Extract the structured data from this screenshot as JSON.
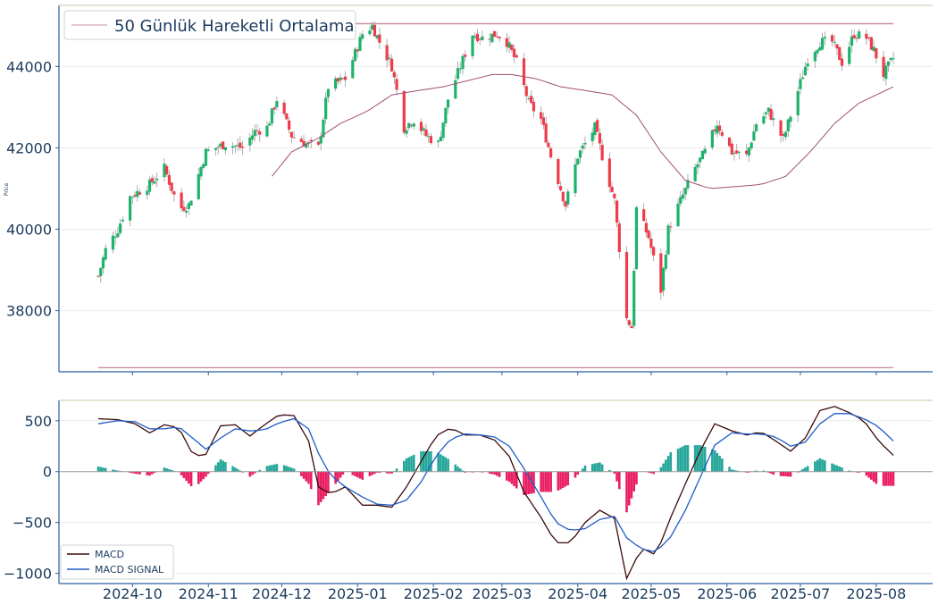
{
  "chart_data": [
    {
      "type": "candlestick",
      "ylabel": "Price",
      "ylim": [
        36500,
        45500
      ],
      "yticks": [
        "38000",
        "40000",
        "42000",
        "44000"
      ],
      "x_labels": [
        "2024-10",
        "2024-11",
        "2024-12",
        "2025-01",
        "2025-02",
        "2025-03",
        "2025-04",
        "2025-05",
        "2025-06",
        "2025-07",
        "2025-08"
      ],
      "x_start": "2024-09-17",
      "x_end": "2025-08-08",
      "legend": {
        "label": "50 Günlük Hareketli Ortalama",
        "position": "top-left"
      },
      "grid": true,
      "reference_lines": [
        45050,
        36600
      ],
      "colors": {
        "up": "#1db36a",
        "down": "#ef3b4a",
        "ma": "#a0506e",
        "ref": "#c88fa3",
        "axis": "#2a5ea0"
      },
      "close_anchors": [
        [
          "2024-09-17",
          38850
        ],
        [
          "2024-09-20",
          39500
        ],
        [
          "2024-09-25",
          40000
        ],
        [
          "2024-09-30",
          40800
        ],
        [
          "2024-10-08",
          41100
        ],
        [
          "2024-10-14",
          41500
        ],
        [
          "2024-10-20",
          40500
        ],
        [
          "2024-10-24",
          40600
        ],
        [
          "2024-10-31",
          41900
        ],
        [
          "2024-11-08",
          42100
        ],
        [
          "2024-11-15",
          42000
        ],
        [
          "2024-11-20",
          42400
        ],
        [
          "2024-11-25",
          42500
        ],
        [
          "2024-11-29",
          43200
        ],
        [
          "2024-12-05",
          42300
        ],
        [
          "2024-12-11",
          42100
        ],
        [
          "2024-12-16",
          42000
        ],
        [
          "2024-12-20",
          43500
        ],
        [
          "2024-12-27",
          43700
        ],
        [
          "2025-01-03",
          44800
        ],
        [
          "2025-01-07",
          45000
        ],
        [
          "2025-01-10",
          44600
        ],
        [
          "2025-01-15",
          44000
        ],
        [
          "2025-01-20",
          42500
        ],
        [
          "2025-01-24",
          42700
        ],
        [
          "2025-01-29",
          42300
        ],
        [
          "2025-02-03",
          42100
        ],
        [
          "2025-02-07",
          43200
        ],
        [
          "2025-02-12",
          44000
        ],
        [
          "2025-02-17",
          44800
        ],
        [
          "2025-02-21",
          44700
        ],
        [
          "2025-02-27",
          44800
        ],
        [
          "2025-03-03",
          44600
        ],
        [
          "2025-03-07",
          44100
        ],
        [
          "2025-03-12",
          43100
        ],
        [
          "2025-03-17",
          42700
        ],
        [
          "2025-03-21",
          41800
        ],
        [
          "2025-03-27",
          40600
        ],
        [
          "2025-04-01",
          41800
        ],
        [
          "2025-04-04",
          42100
        ],
        [
          "2025-04-08",
          42500
        ],
        [
          "2025-04-11",
          41800
        ],
        [
          "2025-04-16",
          40700
        ],
        [
          "2025-04-21",
          37800
        ],
        [
          "2025-04-23",
          37600
        ],
        [
          "2025-04-25",
          40500
        ],
        [
          "2025-04-30",
          39800
        ],
        [
          "2025-05-05",
          38500
        ],
        [
          "2025-05-08",
          40000
        ],
        [
          "2025-05-13",
          40700
        ],
        [
          "2025-05-19",
          41500
        ],
        [
          "2025-05-23",
          41900
        ],
        [
          "2025-05-28",
          42600
        ],
        [
          "2025-06-03",
          41900
        ],
        [
          "2025-06-09",
          41800
        ],
        [
          "2025-06-13",
          42600
        ],
        [
          "2025-06-18",
          42900
        ],
        [
          "2025-06-24",
          42200
        ],
        [
          "2025-06-30",
          43400
        ],
        [
          "2025-07-04",
          44200
        ],
        [
          "2025-07-09",
          44600
        ],
        [
          "2025-07-14",
          44600
        ],
        [
          "2025-07-18",
          44100
        ],
        [
          "2025-07-23",
          44800
        ],
        [
          "2025-07-28",
          44700
        ],
        [
          "2025-07-31",
          44400
        ],
        [
          "2025-08-04",
          43800
        ],
        [
          "2025-08-08",
          44200
        ]
      ],
      "ma_anchors": [
        [
          "2024-11-27",
          41300
        ],
        [
          "2024-12-05",
          41900
        ],
        [
          "2024-12-15",
          42200
        ],
        [
          "2024-12-25",
          42600
        ],
        [
          "2025-01-05",
          42900
        ],
        [
          "2025-01-15",
          43300
        ],
        [
          "2025-01-25",
          43400
        ],
        [
          "2025-02-05",
          43500
        ],
        [
          "2025-02-15",
          43650
        ],
        [
          "2025-02-25",
          43800
        ],
        [
          "2025-03-05",
          43800
        ],
        [
          "2025-03-15",
          43700
        ],
        [
          "2025-03-25",
          43500
        ],
        [
          "2025-04-05",
          43400
        ],
        [
          "2025-04-15",
          43300
        ],
        [
          "2025-04-25",
          42800
        ],
        [
          "2025-05-05",
          41900
        ],
        [
          "2025-05-15",
          41200
        ],
        [
          "2025-05-25",
          41000
        ],
        [
          "2025-06-05",
          41050
        ],
        [
          "2025-06-15",
          41100
        ],
        [
          "2025-06-25",
          41300
        ],
        [
          "2025-07-05",
          41900
        ],
        [
          "2025-07-15",
          42600
        ],
        [
          "2025-07-25",
          43100
        ],
        [
          "2025-08-08",
          43500
        ]
      ]
    },
    {
      "type": "line+bar",
      "ylim": [
        -1100,
        700
      ],
      "yticks": [
        "500",
        "0",
        "−500",
        "−1000"
      ],
      "x_labels": [
        "2024-10",
        "2024-11",
        "2024-12",
        "2025-01",
        "2025-02",
        "2025-03",
        "2025-04",
        "2025-05",
        "2025-06",
        "2025-07",
        "2025-08"
      ],
      "legend": {
        "position": "bottom-left"
      },
      "grid": true,
      "series": [
        {
          "name": "MACD",
          "color": "#3a0a0a",
          "points": [
            [
              "2024-09-17",
              520
            ],
            [
              "2024-09-25",
              510
            ],
            [
              "2024-10-02",
              470
            ],
            [
              "2024-10-08",
              380
            ],
            [
              "2024-10-14",
              460
            ],
            [
              "2024-10-20",
              430
            ],
            [
              "2024-10-26",
              150
            ],
            [
              "2024-10-31",
              170
            ],
            [
              "2024-11-06",
              450
            ],
            [
              "2024-11-12",
              460
            ],
            [
              "2024-11-18",
              350
            ],
            [
              "2024-11-24",
              460
            ],
            [
              "2024-11-30",
              560
            ],
            [
              "2024-12-06",
              550
            ],
            [
              "2024-12-12",
              300
            ],
            [
              "2024-12-16",
              -150
            ],
            [
              "2024-12-21",
              -220
            ],
            [
              "2024-12-27",
              -150
            ],
            [
              "2025-01-03",
              -330
            ],
            [
              "2025-01-09",
              -330
            ],
            [
              "2025-01-15",
              -350
            ],
            [
              "2025-01-21",
              -150
            ],
            [
              "2025-01-27",
              100
            ],
            [
              "2025-02-02",
              350
            ],
            [
              "2025-02-08",
              430
            ],
            [
              "2025-02-14",
              360
            ],
            [
              "2025-02-20",
              360
            ],
            [
              "2025-02-26",
              310
            ],
            [
              "2025-03-04",
              150
            ],
            [
              "2025-03-10",
              -200
            ],
            [
              "2025-03-17",
              -450
            ],
            [
              "2025-03-23",
              -700
            ],
            [
              "2025-03-29",
              -700
            ],
            [
              "2025-04-04",
              -500
            ],
            [
              "2025-04-10",
              -380
            ],
            [
              "2025-04-16",
              -460
            ],
            [
              "2025-04-21",
              -1050
            ],
            [
              "2025-04-27",
              -750
            ],
            [
              "2025-05-03",
              -820
            ],
            [
              "2025-05-09",
              -450
            ],
            [
              "2025-05-15",
              -120
            ],
            [
              "2025-05-21",
              200
            ],
            [
              "2025-05-27",
              470
            ],
            [
              "2025-06-03",
              400
            ],
            [
              "2025-06-09",
              360
            ],
            [
              "2025-06-15",
              390
            ],
            [
              "2025-06-21",
              300
            ],
            [
              "2025-06-27",
              200
            ],
            [
              "2025-07-03",
              330
            ],
            [
              "2025-07-09",
              600
            ],
            [
              "2025-07-15",
              640
            ],
            [
              "2025-07-21",
              580
            ],
            [
              "2025-07-27",
              500
            ],
            [
              "2025-08-02",
              300
            ],
            [
              "2025-08-08",
              160
            ]
          ]
        },
        {
          "name": "MACD SIGNAL",
          "color": "#1e5bc6",
          "points": [
            [
              "2024-09-17",
              470
            ],
            [
              "2024-09-25",
              500
            ],
            [
              "2024-10-02",
              490
            ],
            [
              "2024-10-08",
              420
            ],
            [
              "2024-10-14",
              420
            ],
            [
              "2024-10-20",
              440
            ],
            [
              "2024-10-26",
              320
            ],
            [
              "2024-10-31",
              220
            ],
            [
              "2024-11-06",
              330
            ],
            [
              "2024-11-12",
              420
            ],
            [
              "2024-11-18",
              400
            ],
            [
              "2024-11-24",
              410
            ],
            [
              "2024-11-30",
              480
            ],
            [
              "2024-12-06",
              520
            ],
            [
              "2024-12-12",
              420
            ],
            [
              "2024-12-16",
              180
            ],
            [
              "2024-12-21",
              -40
            ],
            [
              "2024-12-27",
              -150
            ],
            [
              "2025-01-03",
              -250
            ],
            [
              "2025-01-09",
              -320
            ],
            [
              "2025-01-15",
              -330
            ],
            [
              "2025-01-21",
              -280
            ],
            [
              "2025-01-27",
              -100
            ],
            [
              "2025-02-02",
              150
            ],
            [
              "2025-02-08",
              320
            ],
            [
              "2025-02-14",
              370
            ],
            [
              "2025-02-20",
              360
            ],
            [
              "2025-02-26",
              340
            ],
            [
              "2025-03-04",
              250
            ],
            [
              "2025-03-10",
              30
            ],
            [
              "2025-03-17",
              -250
            ],
            [
              "2025-03-23",
              -500
            ],
            [
              "2025-03-29",
              -580
            ],
            [
              "2025-04-04",
              -560
            ],
            [
              "2025-04-10",
              -470
            ],
            [
              "2025-04-16",
              -440
            ],
            [
              "2025-04-21",
              -650
            ],
            [
              "2025-04-27",
              -760
            ],
            [
              "2025-05-03",
              -790
            ],
            [
              "2025-05-09",
              -640
            ],
            [
              "2025-05-15",
              -380
            ],
            [
              "2025-05-21",
              -60
            ],
            [
              "2025-05-27",
              260
            ],
            [
              "2025-06-03",
              380
            ],
            [
              "2025-06-09",
              370
            ],
            [
              "2025-06-15",
              370
            ],
            [
              "2025-06-21",
              340
            ],
            [
              "2025-06-27",
              250
            ],
            [
              "2025-07-03",
              290
            ],
            [
              "2025-07-09",
              470
            ],
            [
              "2025-07-15",
              570
            ],
            [
              "2025-07-21",
              570
            ],
            [
              "2025-07-27",
              520
            ],
            [
              "2025-08-02",
              440
            ],
            [
              "2025-08-08",
              300
            ]
          ]
        }
      ],
      "histogram_colors": {
        "positive": "#26a69a",
        "negative": "#e91e63"
      }
    }
  ]
}
